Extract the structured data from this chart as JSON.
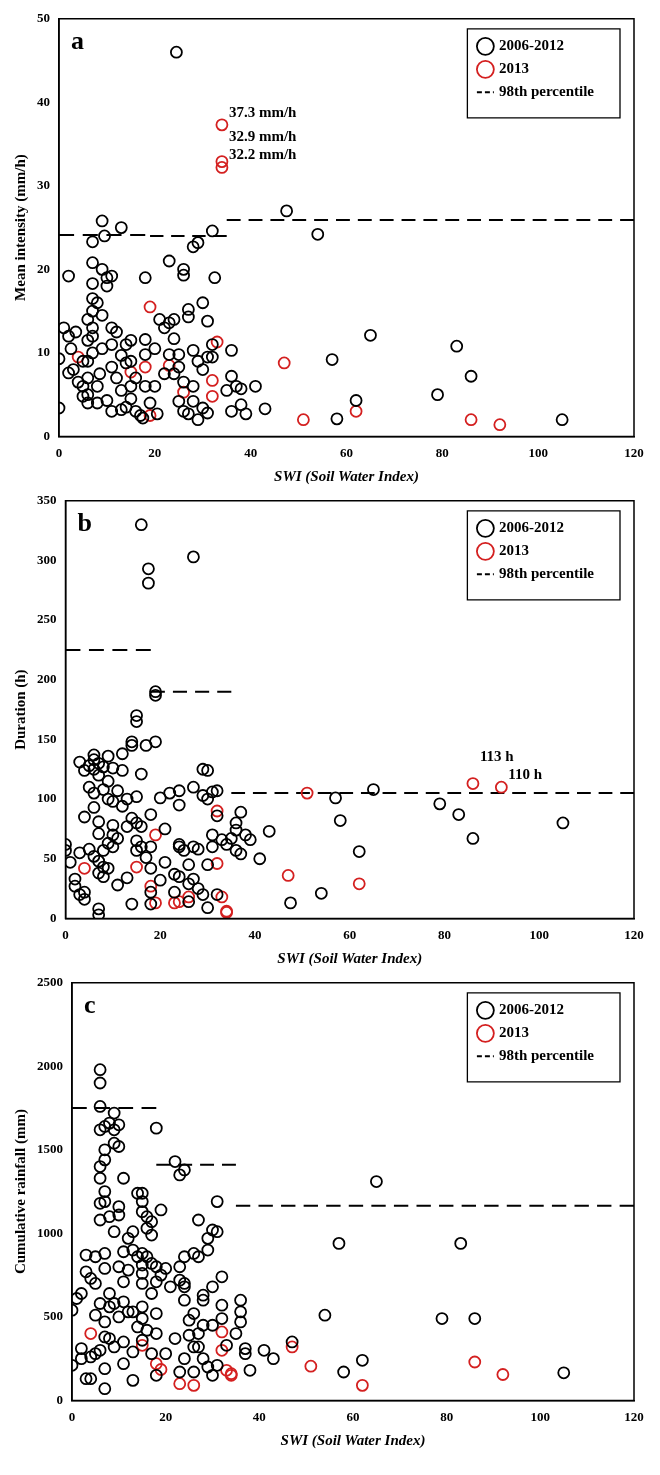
{
  "chart_data": [
    {
      "type": "scatter",
      "title": "a",
      "xlabel": "SWI (Soil Water Index)",
      "ylabel": "Mean intensity (mm/h)",
      "xlim": [
        0,
        120
      ],
      "xticks": [
        0,
        20,
        40,
        60,
        80,
        100,
        120
      ],
      "ylim": [
        0,
        50
      ],
      "yticks": [
        0,
        10,
        20,
        30,
        40,
        50
      ],
      "legend": "top right",
      "grid": false,
      "annotations": [
        {
          "text": "37.3 mm/h",
          "x": 34,
          "y": 37.3
        },
        {
          "text": "32.9 mm/h",
          "x": 34,
          "y": 32.9
        },
        {
          "text": "32.2 mm/h",
          "x": 34,
          "y": 32.2
        }
      ],
      "series": [
        {
          "name": "2006-2012",
          "color": "#000000",
          "marker": "circle",
          "x": [
            0,
            0,
            1,
            2,
            2,
            2.5,
            2,
            3,
            3.5,
            4,
            5,
            5,
            5,
            6,
            6,
            6,
            6,
            6,
            6,
            7,
            7,
            7,
            7,
            7,
            7,
            7,
            7,
            8,
            8,
            8,
            8.5,
            9,
            9,
            9,
            9,
            9.5,
            10,
            10,
            10,
            11,
            11,
            11,
            11,
            11,
            12,
            12,
            13,
            13,
            13,
            13,
            14,
            14,
            14,
            15,
            15,
            15,
            15,
            16,
            16,
            17,
            17.5,
            18,
            18,
            18,
            18,
            19,
            20,
            20,
            20.5,
            21,
            22,
            22,
            23,
            23,
            23,
            24,
            24,
            24,
            24.5,
            25,
            25,
            25,
            26,
            26,
            26,
            26,
            27,
            27,
            27,
            28,
            28,
            28,
            28,
            29,
            29,
            29,
            30,
            30,
            30,
            31,
            31,
            31,
            32,
            32,
            32,
            32.5,
            35,
            36,
            36,
            36,
            37,
            38,
            38,
            39,
            41,
            43,
            47.5,
            54,
            57,
            58,
            62,
            65,
            79,
            83,
            86,
            105
          ],
          "values": [
            9.3,
            3.4,
            13,
            19.2,
            12,
            10.5,
            7.6,
            8,
            12.5,
            6.5,
            9,
            6,
            4.8,
            14,
            11.5,
            9,
            7,
            5,
            4,
            16.5,
            15,
            13,
            12,
            10,
            18.3,
            20.8,
            23.3,
            16,
            4,
            6,
            7.5,
            20,
            14.5,
            10.5,
            25.8,
            24,
            19,
            18,
            4.3,
            19.2,
            13,
            11,
            8.3,
            3,
            12.5,
            7,
            9.7,
            5.5,
            3.2,
            25,
            11,
            8.8,
            3.5,
            11.5,
            9,
            6,
            4.5,
            7,
            3,
            2.5,
            2.2,
            19,
            11.6,
            9.8,
            6,
            4,
            6,
            10.5,
            2.7,
            14,
            13,
            7.5,
            21,
            9.8,
            13.6,
            14,
            11.7,
            7.5,
            46,
            9.8,
            4.2,
            8.3,
            20,
            19.3,
            6.5,
            3,
            15.2,
            14.3,
            2.7,
            22.7,
            10.3,
            6,
            4.2,
            23.2,
            9,
            2,
            16,
            8,
            3.4,
            9.5,
            2.8,
            13.8,
            24.6,
            9.5,
            11,
            19,
            5.5,
            7.2,
            10.3,
            3,
            6,
            3.8,
            5.7,
            2.7,
            6,
            3.3,
            27,
            24.2,
            9.2,
            2.1,
            4.3,
            12.1,
            5,
            10.8,
            7.2,
            2
          ]
        },
        {
          "name": "2013",
          "color": "#d42020",
          "marker": "circle",
          "x": [
            4,
            15,
            18,
            19,
            19,
            23,
            26,
            32,
            32,
            33,
            34,
            34,
            34,
            47,
            51,
            62,
            86,
            92
          ],
          "values": [
            9.5,
            7.7,
            8.3,
            15.5,
            2.5,
            8.5,
            5.3,
            6.7,
            4.8,
            11.3,
            37.3,
            32.9,
            32.2,
            8.8,
            2,
            3,
            2,
            1.4
          ]
        },
        {
          "name": "98th percentile",
          "type": "line",
          "line_style": "dashed",
          "color": "#000000",
          "x": [
            0,
            18
          ],
          "values": [
            24.1,
            24.1
          ]
        },
        {
          "type": "line",
          "line_style": "dashed",
          "color": "#000000",
          "x": [
            19,
            35
          ],
          "values": [
            24,
            24
          ]
        },
        {
          "type": "line",
          "line_style": "dashed",
          "color": "#000000",
          "x": [
            35,
            120
          ],
          "values": [
            25.9,
            25.9
          ]
        }
      ]
    },
    {
      "type": "scatter",
      "title": "b",
      "xlabel": "SWI (Soil Water Index)",
      "ylabel": "Duration (h)",
      "xlim": [
        0,
        120
      ],
      "xticks": [
        0,
        20,
        40,
        60,
        80,
        100,
        120
      ],
      "ylim": [
        0,
        350
      ],
      "yticks": [
        0,
        50,
        100,
        150,
        200,
        250,
        300,
        350
      ],
      "legend": "top right",
      "grid": false,
      "annotations": [
        {
          "text": "113 h",
          "x": 86,
          "y": 113
        },
        {
          "text": "110 h",
          "x": 92,
          "y": 110
        }
      ],
      "series": [
        {
          "name": "2006-2012",
          "color": "#000000",
          "marker": "circle",
          "x": [
            0,
            0,
            1,
            2,
            2,
            3,
            3,
            3,
            4,
            4,
            4,
            4,
            5,
            5,
            5,
            6,
            6,
            6,
            6,
            6,
            6,
            7,
            7,
            7,
            7,
            7,
            7,
            7,
            7,
            8,
            8,
            8,
            8,
            8,
            9,
            9,
            9,
            9,
            9,
            10,
            10,
            10,
            10,
            10,
            11,
            11,
            11,
            12,
            12,
            12,
            13,
            13,
            13,
            14,
            14,
            14,
            14,
            15,
            15,
            15,
            15,
            15,
            15,
            16,
            16,
            16,
            16,
            17,
            17,
            17.5,
            17.5,
            18,
            18,
            18,
            18,
            18,
            19,
            19,
            19,
            20,
            20,
            21,
            21,
            22,
            23,
            23,
            24,
            24,
            24,
            24,
            24,
            25,
            26,
            26,
            26,
            27,
            27,
            27,
            27,
            28,
            28,
            29,
            29,
            29,
            30,
            30,
            30,
            30,
            31,
            31,
            31,
            32,
            32,
            32,
            33,
            34,
            35,
            36,
            36,
            36,
            37,
            37,
            38,
            39,
            41,
            43,
            47.5,
            54,
            57,
            58,
            62,
            65,
            79,
            83,
            86,
            105
          ],
          "values": [
            62,
            57,
            47,
            33,
            27,
            131,
            55,
            20,
            85,
            22,
            16,
            124,
            128,
            110,
            58,
            137,
            133,
            125,
            105,
            93,
            52,
            130,
            120,
            81,
            71,
            48,
            38,
            8,
            3,
            127,
            108,
            57,
            43,
            35,
            136,
            115,
            100,
            63,
            42,
            126,
            98,
            78,
            70,
            60,
            107,
            67,
            28,
            138,
            124,
            94,
            100,
            77,
            34,
            148,
            145,
            84,
            12,
            170,
            165,
            102,
            80,
            65,
            57,
            121,
            77,
            330,
            60,
            145,
            51,
            293,
            281,
            87,
            60,
            42,
            22,
            12,
            148,
            190,
            187,
            101,
            32,
            75,
            47,
            105,
            37,
            22,
            107,
            95,
            62,
            60,
            35,
            57,
            45,
            29,
            14,
            110,
            303,
            60,
            33,
            58,
            25,
            125,
            103,
            20,
            124,
            100,
            45,
            9,
            106,
            70,
            60,
            107,
            86,
            20,
            66,
            62,
            67,
            80,
            74,
            57,
            89,
            54,
            70,
            66,
            50,
            73,
            13,
            21,
            101,
            82,
            56,
            108,
            96,
            87,
            67,
            80
          ]
        },
        {
          "name": "2013",
          "color": "#d42020",
          "marker": "circle",
          "x": [
            4,
            15,
            18,
            19,
            19,
            23,
            24,
            26,
            32,
            32,
            33,
            34,
            34,
            47,
            51,
            62,
            86,
            92
          ],
          "values": [
            42,
            43,
            27,
            13,
            70,
            13,
            14,
            18,
            90,
            46,
            18,
            6,
            5,
            36,
            105,
            29,
            113,
            110
          ]
        },
        {
          "name": "98th percentile",
          "type": "line",
          "line_style": "dashed",
          "color": "#000000",
          "x": [
            0,
            18
          ],
          "values": [
            225,
            225
          ]
        },
        {
          "type": "line",
          "line_style": "dashed",
          "color": "#000000",
          "x": [
            18,
            35
          ],
          "values": [
            190,
            190
          ]
        },
        {
          "type": "line",
          "line_style": "dashed",
          "color": "#000000",
          "x": [
            35,
            120
          ],
          "values": [
            105,
            105
          ]
        }
      ]
    },
    {
      "type": "scatter",
      "title": "c",
      "xlabel": "SWI (Soil Water Index)",
      "ylabel": "Cumulative rainfall (mm)",
      "xlim": [
        0,
        120
      ],
      "xticks": [
        0,
        20,
        40,
        60,
        80,
        100,
        120
      ],
      "ylim": [
        0,
        2500
      ],
      "yticks": [
        0,
        500,
        1000,
        1500,
        2000,
        2500
      ],
      "legend": "top right",
      "grid": false,
      "series": [
        {
          "name": "2006-2012",
          "color": "#000000",
          "marker": "circle",
          "x": [
            0,
            0,
            1,
            2,
            2,
            2,
            3,
            3,
            3,
            4,
            4,
            4,
            5,
            5,
            5,
            5,
            6,
            6,
            6,
            6,
            6,
            6,
            6,
            6,
            6,
            6,
            7,
            7,
            7,
            7,
            7,
            7,
            7,
            7,
            7,
            7,
            7,
            8,
            8,
            8,
            8,
            8,
            9,
            9,
            9,
            9,
            9,
            9,
            10,
            10,
            10,
            10,
            10,
            10,
            11,
            11,
            11,
            11,
            11,
            11,
            12,
            12,
            12,
            13,
            13,
            13,
            13,
            13,
            14,
            14,
            14,
            15,
            15,
            15,
            15,
            15,
            15,
            15,
            15,
            15,
            15,
            16,
            16,
            16,
            16,
            17,
            17,
            17,
            17,
            17,
            18,
            18,
            18,
            18,
            18,
            18,
            19,
            19,
            20,
            20,
            21,
            22,
            22,
            23,
            23,
            23,
            23,
            24,
            24,
            24,
            24,
            24,
            24,
            25,
            25,
            26,
            26,
            26,
            26,
            27,
            27,
            27,
            27,
            28,
            28,
            28,
            28,
            29,
            29,
            29,
            30,
            30,
            30,
            30,
            31,
            31,
            31,
            32,
            32,
            32,
            33,
            35,
            36,
            36,
            36,
            37,
            37,
            38,
            41,
            43,
            47,
            54,
            57,
            58,
            62,
            65,
            79,
            83,
            86,
            105
          ],
          "values": [
            540,
            210,
            610,
            640,
            310,
            250,
            870,
            770,
            130,
            730,
            130,
            260,
            860,
            700,
            510,
            280,
            1980,
            1900,
            1760,
            1620,
            1400,
            1330,
            1180,
            1080,
            580,
            300,
            1640,
            1500,
            1440,
            1250,
            1190,
            880,
            790,
            470,
            380,
            190,
            70,
            1660,
            1100,
            640,
            560,
            370,
            1720,
            1540,
            1620,
            1010,
            580,
            320,
            1650,
            1520,
            1160,
            1110,
            800,
            500,
            1330,
            890,
            710,
            590,
            220,
            350,
            970,
            780,
            530,
            900,
            1010,
            530,
            290,
            120,
            1240,
            440,
            860,
            1240,
            1190,
            1130,
            880,
            810,
            760,
            700,
            560,
            490,
            360,
            1100,
            1030,
            860,
            420,
            1070,
            990,
            820,
            640,
            280,
            1630,
            800,
            710,
            520,
            400,
            150,
            1140,
            750,
            790,
            280,
            680,
            1430,
            370,
            1350,
            800,
            720,
            170,
            1380,
            860,
            700,
            680,
            600,
            250,
            480,
            390,
            880,
            520,
            320,
            170,
            1080,
            860,
            400,
            320,
            630,
            600,
            450,
            250,
            900,
            970,
            200,
            1020,
            680,
            450,
            150,
            1010,
            210,
            1190,
            570,
            490,
            740,
            330,
            400,
            600,
            530,
            470,
            310,
            280,
            180,
            300,
            250,
            350,
            510,
            940,
            170,
            240,
            1310,
            490,
            940,
            490,
            165
          ]
        },
        {
          "name": "2013",
          "color": "#d42020",
          "marker": "circle",
          "x": [
            4,
            15,
            18,
            19,
            23,
            26,
            32,
            32,
            33,
            34,
            34,
            47,
            51,
            62,
            86,
            92
          ],
          "values": [
            400,
            330,
            220,
            185,
            100,
            90,
            410,
            300,
            180,
            160,
            150,
            320,
            205,
            90,
            230,
            155
          ]
        },
        {
          "name": "98th percentile",
          "type": "line",
          "line_style": "dashed",
          "color": "#000000",
          "x": [
            0,
            18
          ],
          "values": [
            1750,
            1750
          ]
        },
        {
          "type": "line",
          "line_style": "dashed",
          "color": "#000000",
          "x": [
            18,
            35
          ],
          "values": [
            1410,
            1410
          ]
        },
        {
          "type": "line",
          "line_style": "dashed",
          "color": "#000000",
          "x": [
            35,
            120
          ],
          "values": [
            1165,
            1165
          ]
        }
      ]
    }
  ]
}
